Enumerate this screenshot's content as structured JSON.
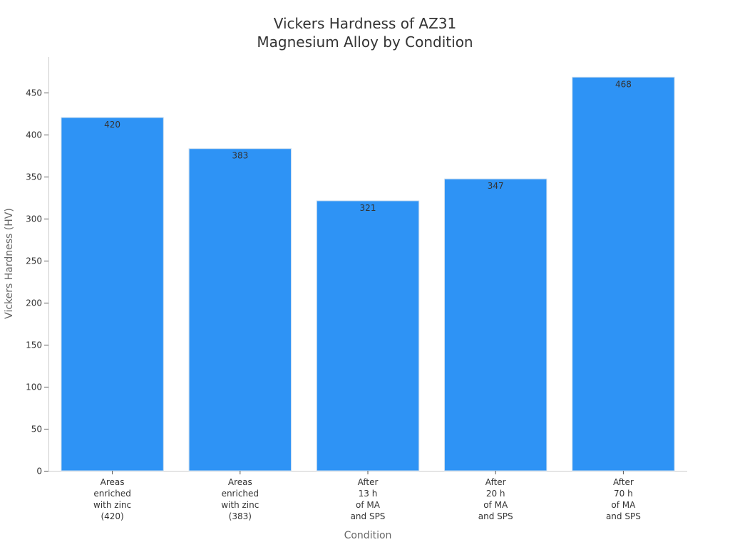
{
  "chart_data": {
    "type": "bar",
    "title_lines": [
      "Vickers Hardness of AZ31",
      "Magnesium Alloy by Condition"
    ],
    "xlabel": "Condition",
    "ylabel": "Vickers Hardness (HV)",
    "categories": [
      [
        "Areas",
        "enriched",
        "with zinc",
        "(420)"
      ],
      [
        "Areas",
        "enriched",
        "with zinc",
        "(383)"
      ],
      [
        "After",
        "13 h",
        "of MA",
        "and SPS"
      ],
      [
        "After",
        "20 h",
        "of MA",
        "and SPS"
      ],
      [
        "After",
        "70 h",
        "of MA",
        "and SPS"
      ]
    ],
    "values": [
      420,
      383,
      321,
      347,
      468
    ],
    "value_labels": [
      "420",
      "383",
      "321",
      "347",
      "468"
    ],
    "yticks": [
      0,
      50,
      100,
      150,
      200,
      250,
      300,
      350,
      400,
      450
    ],
    "ytick_labels": [
      "0",
      "50",
      "100",
      "150",
      "200",
      "250",
      "300",
      "350",
      "400",
      "450"
    ],
    "ylim": [
      0,
      492
    ],
    "grid": false,
    "legend": "none",
    "bar_color": "#2e93f5"
  }
}
